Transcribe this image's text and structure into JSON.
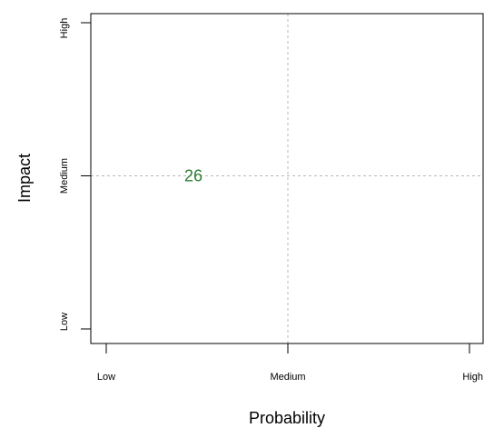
{
  "chart_data": {
    "type": "scatter",
    "title": "",
    "xlabel": "Probability",
    "ylabel": "Impact",
    "x_categories": [
      "Low",
      "Medium",
      "High"
    ],
    "y_categories": [
      "Low",
      "Medium",
      "High"
    ],
    "xlim": [
      1,
      3
    ],
    "ylim": [
      1,
      3
    ],
    "grid": "dashed lines at Medium",
    "points": [
      {
        "x": 1.48,
        "y": 2.0,
        "label": "26",
        "color": "#2e7d32"
      }
    ]
  }
}
